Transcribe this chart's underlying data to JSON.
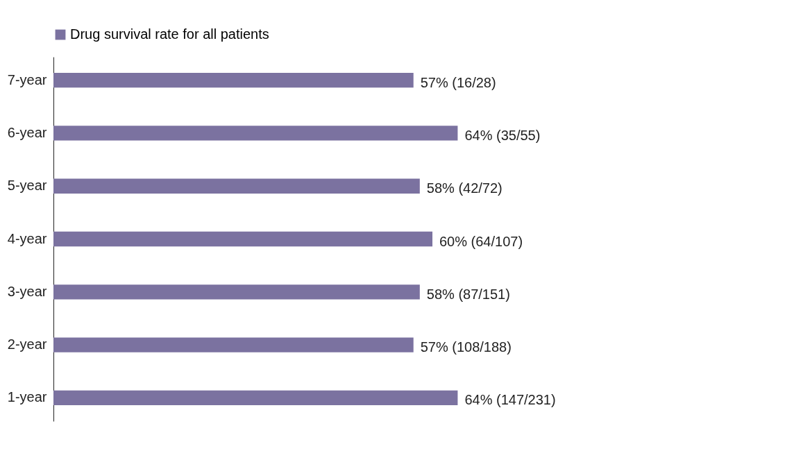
{
  "chart_data": {
    "type": "bar",
    "orientation": "horizontal",
    "categories": [
      "7-year",
      "6-year",
      "5-year",
      "4-year",
      "3-year",
      "2-year",
      "1-year"
    ],
    "series": [
      {
        "name": "Drug survival rate for all patients",
        "color": "#7b72a0",
        "values": [
          57,
          64,
          58,
          60,
          58,
          57,
          64
        ],
        "value_labels": [
          "57% (16/28)",
          "64% (35/55)",
          "58% (42/72)",
          "60% (64/107)",
          "58% (87/151)",
          "57% (108/188)",
          "64% (147/231)"
        ]
      }
    ],
    "legend": "top",
    "grid": false
  }
}
